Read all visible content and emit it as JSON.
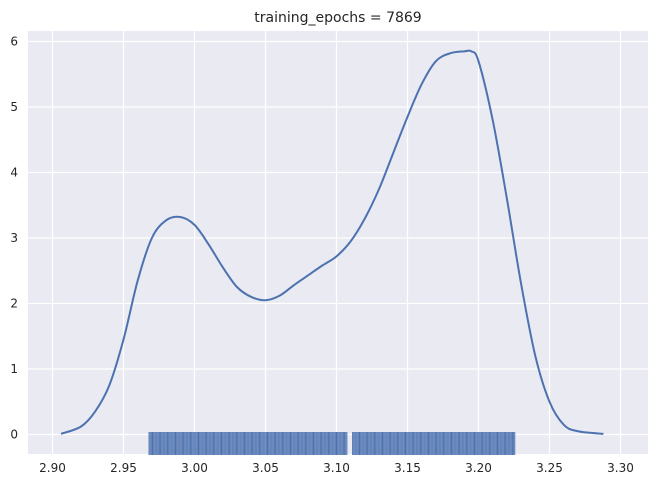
{
  "chart_data": {
    "type": "line",
    "title": "training_epochs = 7869",
    "xlabel": "",
    "ylabel": "",
    "xlim": [
      2.9,
      3.3
    ],
    "ylim": [
      0,
      6
    ],
    "x_ticks": [
      "2.90",
      "2.95",
      "3.00",
      "3.05",
      "3.10",
      "3.15",
      "3.20",
      "3.25",
      "3.30"
    ],
    "y_ticks": [
      "0",
      "1",
      "2",
      "3",
      "4",
      "5",
      "6"
    ],
    "grid": true,
    "background": "#eaeaf2",
    "series": [
      {
        "color": "#4c72b0",
        "x": [
          2.906,
          2.92,
          2.93,
          2.94,
          2.95,
          2.96,
          2.97,
          2.98,
          2.99,
          3.0,
          3.01,
          3.02,
          3.03,
          3.04,
          3.05,
          3.06,
          3.07,
          3.08,
          3.09,
          3.1,
          3.11,
          3.12,
          3.13,
          3.14,
          3.15,
          3.16,
          3.17,
          3.18,
          3.19,
          3.195,
          3.2,
          3.21,
          3.22,
          3.23,
          3.24,
          3.25,
          3.26,
          3.27,
          3.288
        ],
        "y": [
          0.01,
          0.12,
          0.35,
          0.75,
          1.45,
          2.35,
          3.0,
          3.27,
          3.32,
          3.2,
          2.9,
          2.55,
          2.25,
          2.1,
          2.05,
          2.12,
          2.28,
          2.43,
          2.58,
          2.72,
          2.95,
          3.3,
          3.75,
          4.3,
          4.85,
          5.35,
          5.7,
          5.82,
          5.85,
          5.85,
          5.7,
          4.8,
          3.6,
          2.3,
          1.2,
          0.5,
          0.15,
          0.05,
          0.01
        ]
      }
    ],
    "rug": {
      "color": "#4c72b0",
      "range": [
        2.968,
        3.226
      ],
      "gap": [
        3.108,
        3.111
      ]
    }
  }
}
